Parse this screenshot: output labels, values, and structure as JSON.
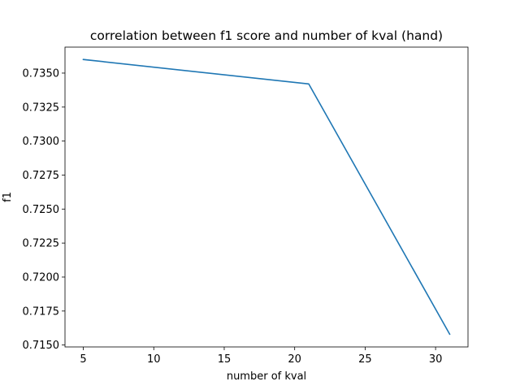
{
  "chart_data": {
    "type": "line",
    "title": "correlation between f1 score and number of kval (hand)",
    "xlabel": "number of kval",
    "ylabel": "f1",
    "x": [
      5,
      21,
      31
    ],
    "series": [
      {
        "values": [
          0.736,
          0.7342,
          0.7158
        ],
        "color": "#1f77b4"
      }
    ],
    "xlim": [
      3.7,
      32.3
    ],
    "ylim": [
      0.71486,
      0.73691
    ],
    "xticks": [
      5,
      10,
      15,
      20,
      25,
      30
    ],
    "xtick_labels": [
      "5",
      "10",
      "15",
      "20",
      "25",
      "30"
    ],
    "yticks": [
      0.715,
      0.7175,
      0.72,
      0.7225,
      0.725,
      0.7275,
      0.73,
      0.7325,
      0.735
    ],
    "ytick_labels": [
      "0.7150",
      "0.7175",
      "0.7200",
      "0.7225",
      "0.7250",
      "0.7275",
      "0.7300",
      "0.7325",
      "0.7350"
    ],
    "grid": false,
    "legend": false
  }
}
